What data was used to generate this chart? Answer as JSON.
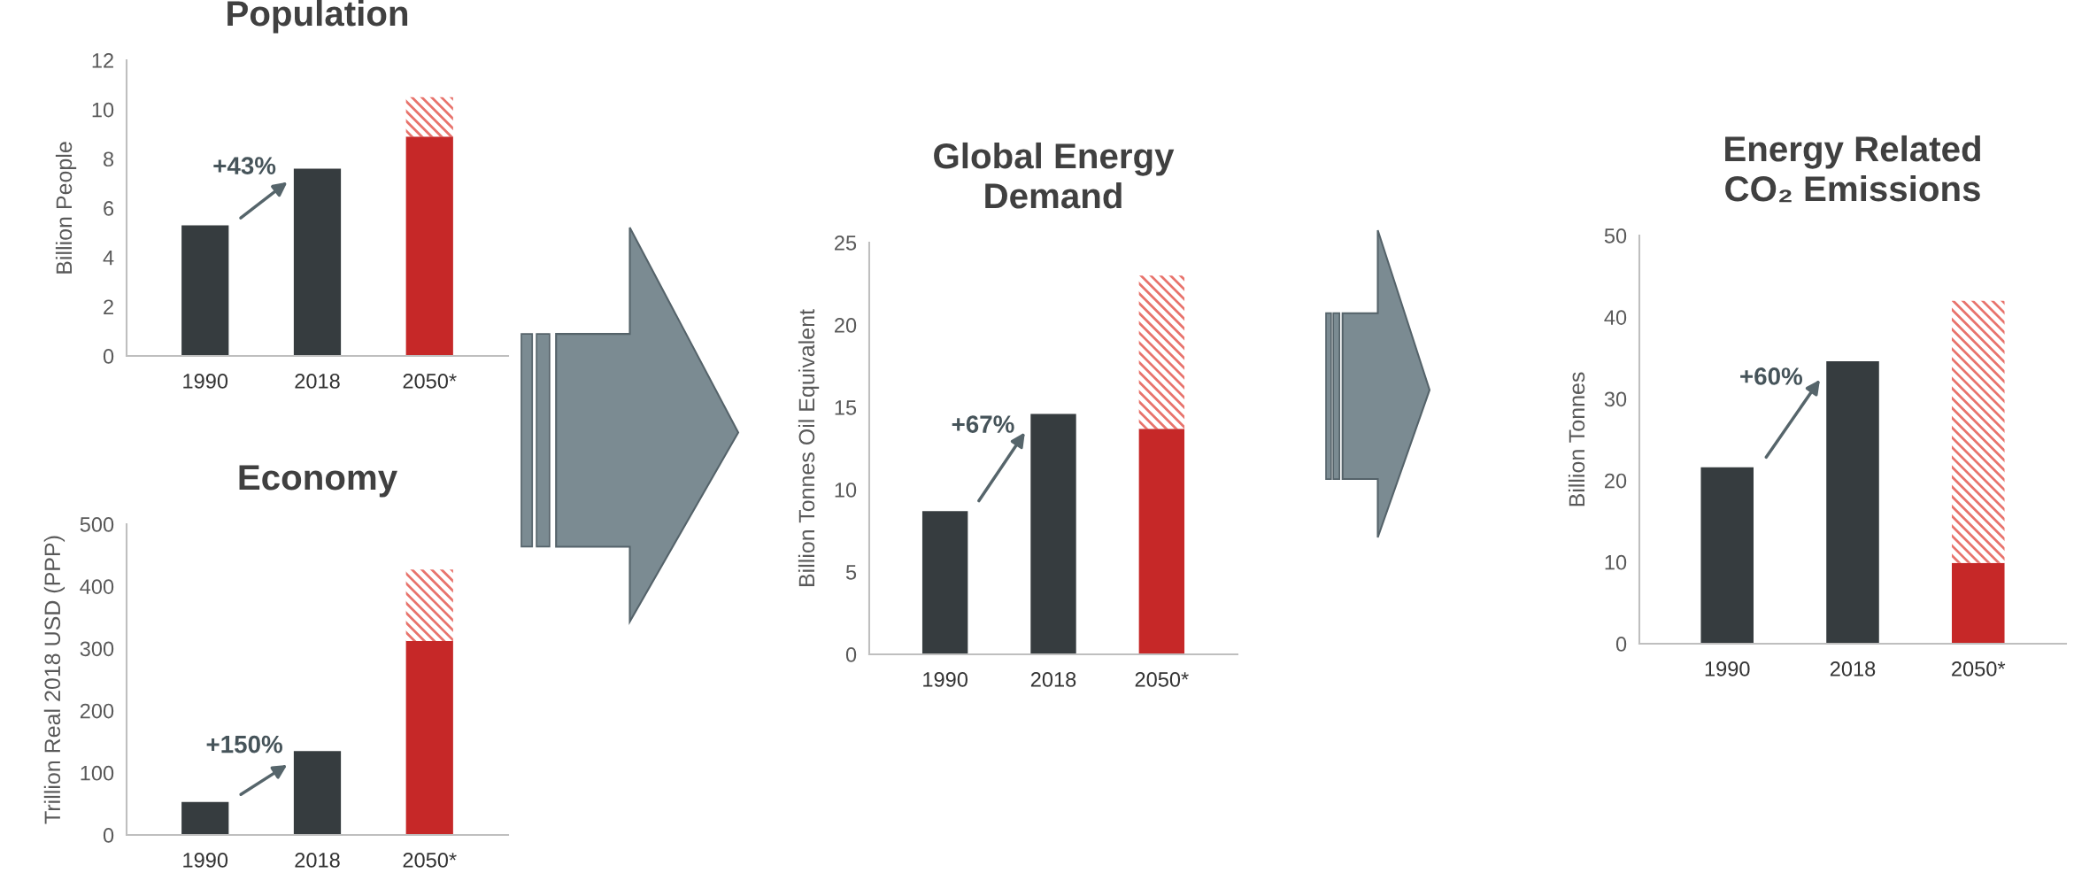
{
  "chart_data": [
    {
      "type": "bar",
      "title": "Population",
      "ylabel": "Billion People",
      "categories": [
        "1990",
        "2018",
        "2050*"
      ],
      "stacked": true,
      "series": [
        {
          "colors": [
            "#363c3f",
            "#363c3f",
            "#c62828"
          ],
          "values": [
            5.3,
            7.6,
            8.9
          ]
        },
        {
          "color": "#e8736c",
          "values": [
            null,
            null,
            1.6
          ]
        }
      ],
      "ylim": [
        0,
        12
      ],
      "yticks": [
        0,
        2,
        4,
        6,
        8,
        10,
        12
      ],
      "annotations": [
        "+43%"
      ]
    },
    {
      "type": "bar",
      "title": "Economy",
      "ylabel": "Trillion Real 2018 USD (PPP)",
      "categories": [
        "1990",
        "2018",
        "2050*"
      ],
      "stacked": true,
      "series": [
        {
          "colors": [
            "#363c3f",
            "#363c3f",
            "#c62828"
          ],
          "values": [
            53,
            135,
            312
          ]
        },
        {
          "color": "#e8736c",
          "values": [
            null,
            null,
            115
          ]
        }
      ],
      "ylim": [
        0,
        500
      ],
      "yticks": [
        0,
        100,
        200,
        300,
        400,
        500
      ],
      "annotations": [
        "+150%"
      ]
    },
    {
      "type": "bar",
      "title": "Global Energy\nDemand",
      "ylabel": "Billion Tonnes Oil Equivalent",
      "categories": [
        "1990",
        "2018",
        "2050*"
      ],
      "stacked": true,
      "series": [
        {
          "colors": [
            "#363c3f",
            "#363c3f",
            "#c62828"
          ],
          "values": [
            8.7,
            14.6,
            13.7
          ]
        },
        {
          "color": "#e8736c",
          "values": [
            null,
            null,
            9.3
          ]
        }
      ],
      "ylim": [
        0,
        25
      ],
      "yticks": [
        0,
        5,
        10,
        15,
        20,
        25
      ],
      "annotations": [
        "+67%"
      ]
    },
    {
      "type": "bar",
      "title": "Energy Related\nCO₂ Emissions",
      "ylabel": "Billion Tonnes",
      "categories": [
        "1990",
        "2018",
        "2050*"
      ],
      "stacked": true,
      "series": [
        {
          "colors": [
            "#363c3f",
            "#363c3f",
            "#c62828"
          ],
          "values": [
            21.6,
            34.6,
            9.9
          ]
        },
        {
          "color": "#e8736c",
          "values": [
            null,
            null,
            32.1
          ]
        }
      ],
      "ylim": [
        0,
        50
      ],
      "yticks": [
        0,
        10,
        20,
        30,
        40,
        50
      ],
      "annotations": [
        "+60%"
      ]
    }
  ]
}
